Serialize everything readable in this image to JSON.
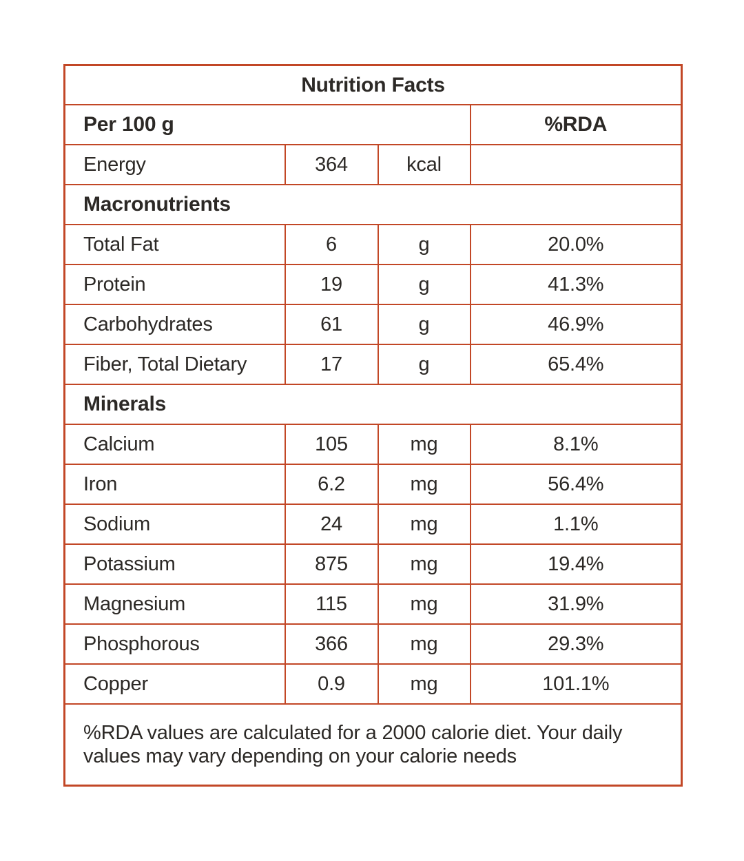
{
  "table": {
    "title": "Nutrition Facts",
    "serving_label": "Per 100 g",
    "rda_header": "%RDA",
    "energy_row": {
      "label": "Energy",
      "value": "364",
      "unit": "kcal",
      "rda": ""
    },
    "sections": [
      {
        "header": "Macronutrients",
        "rows": [
          {
            "label": "Total Fat",
            "value": "6",
            "unit": "g",
            "rda": "20.0%"
          },
          {
            "label": "Protein",
            "value": "19",
            "unit": "g",
            "rda": "41.3%"
          },
          {
            "label": "Carbohydrates",
            "value": "61",
            "unit": "g",
            "rda": "46.9%"
          },
          {
            "label": "Fiber, Total Dietary",
            "value": "17",
            "unit": "g",
            "rda": "65.4%"
          }
        ]
      },
      {
        "header": "Minerals",
        "rows": [
          {
            "label": "Calcium",
            "value": "105",
            "unit": "mg",
            "rda": "8.1%"
          },
          {
            "label": "Iron",
            "value": "6.2",
            "unit": "mg",
            "rda": "56.4%"
          },
          {
            "label": "Sodium",
            "value": "24",
            "unit": "mg",
            "rda": "1.1%"
          },
          {
            "label": "Potassium",
            "value": "875",
            "unit": "mg",
            "rda": "19.4%"
          },
          {
            "label": "Magnesium",
            "value": "115",
            "unit": "mg",
            "rda": "31.9%"
          },
          {
            "label": "Phosphorous",
            "value": "366",
            "unit": "mg",
            "rda": "29.3%"
          },
          {
            "label": "Copper",
            "value": "0.9",
            "unit": "mg",
            "rda": "101.1%"
          }
        ]
      }
    ],
    "footnote": "%RDA values are calculated for a 2000 calorie diet. Your daily values may vary depending on your calorie needs",
    "colors": {
      "border": "#c24726",
      "text": "#2c2926",
      "background": "#ffffff"
    }
  }
}
